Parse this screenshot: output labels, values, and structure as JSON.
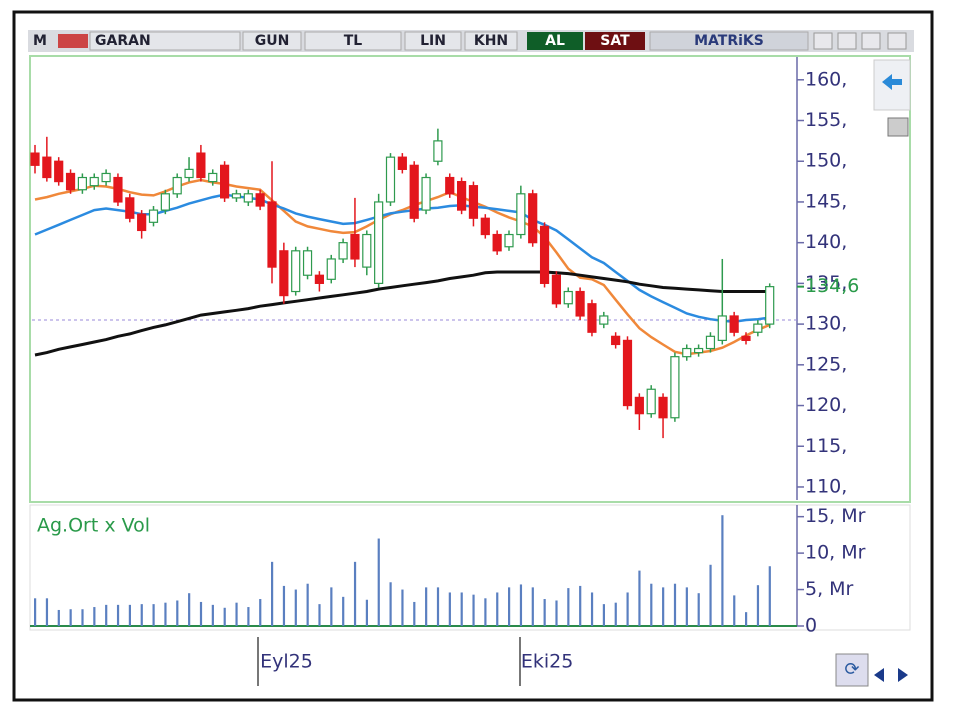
{
  "toolbar": {
    "logo": "M",
    "symbol": "GARAN",
    "period": "GUN",
    "currency": "TL",
    "scale": "LIN",
    "style": "KHN",
    "buy": "AL",
    "sell": "SAT",
    "brand": "MATRiKS"
  },
  "chart_data": [
    {
      "type": "candlestick",
      "categories": [
        null,
        null,
        null,
        null,
        null,
        null,
        null,
        null,
        null,
        null,
        null,
        null,
        null,
        null,
        null,
        null,
        null,
        null,
        null,
        "Eyl25",
        null,
        null,
        null,
        null,
        null,
        null,
        null,
        null,
        null,
        null,
        null,
        null,
        null,
        null,
        null,
        null,
        null,
        null,
        null,
        null,
        null,
        "Eki25",
        null,
        null,
        null,
        null,
        null,
        null,
        null,
        null,
        null,
        null,
        null,
        null,
        null,
        null,
        null,
        null,
        null,
        null,
        null,
        null,
        null
      ],
      "open": [
        151,
        150.5,
        150,
        148.5,
        146.5,
        147,
        147.5,
        148,
        145.5,
        143.5,
        142.5,
        144,
        146,
        148,
        151,
        147.5,
        149.5,
        145.5,
        145,
        146,
        145,
        139,
        134,
        136,
        136,
        135.5,
        138,
        141,
        137,
        135,
        145,
        150.5,
        149.5,
        144,
        150,
        148,
        147.5,
        147,
        143,
        141,
        139.5,
        141,
        146,
        142,
        136,
        132.5,
        134,
        132.5,
        130,
        128.5,
        128,
        121,
        119,
        121,
        118.5,
        126,
        126.5,
        127,
        128,
        131,
        128.5,
        129,
        130
      ],
      "high": [
        152,
        153,
        150.5,
        149,
        148.5,
        148.5,
        149,
        148.5,
        146,
        144,
        144.5,
        146.5,
        148.5,
        150.5,
        152,
        149,
        150,
        146.5,
        146.5,
        146.5,
        150,
        140,
        139.5,
        139.5,
        136.5,
        138.5,
        140.5,
        145.5,
        141.5,
        146,
        151,
        151,
        150,
        148.5,
        154,
        148.5,
        148,
        147.5,
        143.5,
        141.5,
        141.5,
        147,
        146.5,
        142.5,
        136.5,
        134.5,
        134.5,
        133,
        131.5,
        129,
        128.5,
        121.5,
        122.5,
        121.5,
        126.5,
        127.5,
        127.5,
        129,
        138,
        131.5,
        129,
        130.5,
        135
      ],
      "low": [
        148.5,
        147.5,
        147,
        146,
        146,
        146.5,
        147,
        144.5,
        142.5,
        140.5,
        142,
        143.5,
        145.5,
        147.5,
        147.5,
        147,
        145,
        145,
        144.5,
        144,
        135,
        132.5,
        133.5,
        135.5,
        134,
        135,
        137.5,
        137,
        136,
        134.5,
        144.5,
        148.5,
        142.5,
        143.5,
        149.5,
        145.5,
        143.5,
        142,
        140.5,
        138.5,
        139,
        140.5,
        139.5,
        134.5,
        132,
        132,
        130.5,
        128.5,
        129.5,
        127,
        119.5,
        117,
        118.5,
        116,
        118,
        125.5,
        126,
        126.5,
        127.5,
        128.5,
        127.5,
        128.5,
        129.5
      ],
      "close": [
        149.5,
        148,
        147.5,
        146.5,
        148,
        148,
        148.5,
        145,
        143,
        141.5,
        144,
        146,
        148,
        149,
        148,
        148.5,
        145.5,
        146,
        146,
        144.5,
        137,
        133.5,
        139,
        139,
        135,
        138,
        140,
        138,
        141,
        145,
        150.5,
        149,
        143,
        148,
        152.5,
        146,
        144,
        143,
        141,
        139,
        141,
        146,
        140,
        135,
        132.5,
        134,
        131,
        129,
        131,
        127.5,
        120,
        119,
        122,
        118.5,
        126,
        127,
        127,
        128.5,
        131,
        129,
        128,
        130,
        134.6
      ],
      "up_color": "#2e9a4e",
      "down_color": "#e3161d",
      "lines": [
        {
          "color": "#f0883a",
          "values": [
            145.3,
            145.6,
            146.0,
            146.3,
            146.6,
            147.0,
            146.9,
            146.6,
            146.2,
            145.9,
            145.8,
            146.3,
            146.9,
            147.4,
            147.7,
            147.4,
            147.2,
            146.9,
            146.7,
            146.5,
            145.2,
            143.9,
            142.6,
            142.0,
            141.7,
            141.4,
            141.2,
            141.3,
            142.0,
            142.8,
            143.5,
            144.0,
            144.6,
            145.1,
            145.6,
            146.2,
            145.6,
            145.0,
            144.4,
            143.7,
            143.1,
            142.6,
            142.0,
            140.7,
            138.8,
            136.8,
            135.7,
            135.5,
            134.8,
            133.0,
            131.2,
            129.5,
            128.4,
            127.5,
            126.6,
            126.3,
            126.5,
            126.7,
            127.1,
            127.8,
            128.6,
            129.3,
            129.9
          ]
        },
        {
          "color": "#2b8be0",
          "values": [
            141.0,
            141.6,
            142.2,
            142.8,
            143.4,
            144.0,
            144.2,
            144.0,
            143.8,
            143.5,
            143.5,
            143.9,
            144.3,
            144.8,
            145.2,
            145.6,
            145.9,
            145.7,
            145.5,
            145.3,
            144.7,
            144.2,
            143.6,
            143.2,
            142.9,
            142.6,
            142.3,
            142.4,
            142.8,
            143.2,
            143.6,
            143.8,
            144.0,
            144.2,
            144.3,
            144.5,
            144.6,
            144.4,
            144.3,
            144.1,
            143.9,
            143.7,
            142.8,
            142.2,
            141.5,
            140.4,
            139.3,
            138.2,
            137.5,
            136.4,
            135.3,
            134.2,
            133.4,
            132.7,
            132.0,
            131.3,
            130.9,
            130.6,
            130.4,
            130.3,
            130.5,
            130.6,
            130.8
          ]
        },
        {
          "color": "#111111",
          "values": [
            126.2,
            126.5,
            126.9,
            127.2,
            127.5,
            127.8,
            128.1,
            128.5,
            128.8,
            129.2,
            129.6,
            129.9,
            130.3,
            130.7,
            131.1,
            131.3,
            131.5,
            131.7,
            131.9,
            132.2,
            132.4,
            132.6,
            132.8,
            133.0,
            133.2,
            133.4,
            133.6,
            133.8,
            134.0,
            134.3,
            134.5,
            134.7,
            134.9,
            135.1,
            135.3,
            135.6,
            135.8,
            136.0,
            136.3,
            136.4,
            136.4,
            136.4,
            136.4,
            136.4,
            136.3,
            136.2,
            136.0,
            135.8,
            135.6,
            135.4,
            135.2,
            134.9,
            134.7,
            134.5,
            134.4,
            134.3,
            134.2,
            134.1,
            134.0,
            134.0,
            134.0,
            134.0,
            134.0
          ]
        }
      ],
      "reference_line": 130.5,
      "last_price": {
        "value": 134.6,
        "label": "134,6"
      },
      "ylim": [
        108.4,
        162.8
      ],
      "yticks": [
        {
          "value": 110,
          "label": "110,"
        },
        {
          "value": 115,
          "label": "115,"
        },
        {
          "value": 120,
          "label": "120,"
        },
        {
          "value": 125,
          "label": "125,"
        },
        {
          "value": 130,
          "label": "130,"
        },
        {
          "value": 135,
          "label": "135,"
        },
        {
          "value": 140,
          "label": "140,"
        },
        {
          "value": 145,
          "label": "145,"
        },
        {
          "value": 150,
          "label": "150,"
        },
        {
          "value": 155,
          "label": "155,"
        },
        {
          "value": 160,
          "label": "160,"
        }
      ]
    },
    {
      "type": "bar",
      "title": "Ag.Ort x Vol",
      "color": "#5a7fc0",
      "values": [
        3.8,
        3.8,
        2.2,
        2.3,
        2.3,
        2.6,
        2.9,
        2.9,
        2.9,
        3.0,
        3.0,
        3.2,
        3.5,
        4.5,
        3.3,
        2.9,
        2.5,
        3.2,
        2.6,
        3.7,
        8.8,
        5.5,
        5.0,
        5.8,
        3.0,
        5.3,
        4.0,
        8.8,
        3.6,
        12.0,
        6.0,
        5.0,
        3.3,
        5.3,
        5.3,
        4.6,
        4.6,
        4.3,
        3.8,
        4.6,
        5.3,
        5.7,
        5.3,
        3.7,
        3.5,
        5.2,
        5.5,
        4.6,
        3.0,
        3.2,
        4.6,
        7.6,
        5.8,
        5.3,
        5.8,
        5.3,
        4.5,
        8.4,
        15.2,
        4.2,
        1.9,
        5.6,
        8.2
      ],
      "ylim": [
        0,
        16.6
      ],
      "yticks": [
        0,
        {
          "value": 5,
          "label": "5, Mr"
        },
        {
          "value": 10,
          "label": "10, Mr"
        },
        {
          "value": 15,
          "label": "15, Mr"
        }
      ]
    }
  ]
}
